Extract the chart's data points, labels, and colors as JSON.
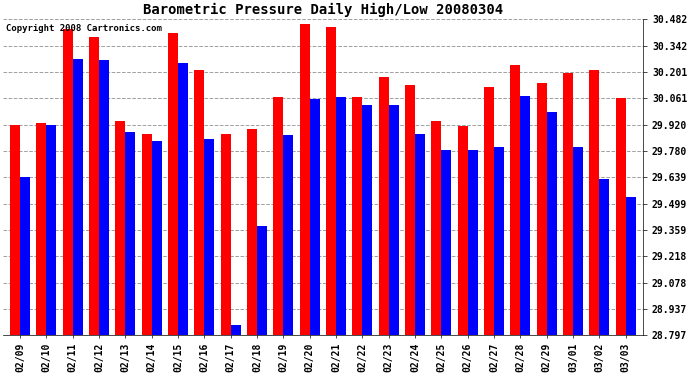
{
  "title": "Barometric Pressure Daily High/Low 20080304",
  "copyright": "Copyright 2008 Cartronics.com",
  "dates": [
    "02/09",
    "02/10",
    "02/11",
    "02/12",
    "02/13",
    "02/14",
    "02/15",
    "02/16",
    "02/17",
    "02/18",
    "02/19",
    "02/20",
    "02/21",
    "02/22",
    "02/23",
    "02/24",
    "02/25",
    "02/26",
    "02/27",
    "02/28",
    "02/29",
    "03/01",
    "03/02",
    "03/03"
  ],
  "highs": [
    29.92,
    29.93,
    30.43,
    30.39,
    29.94,
    29.87,
    30.41,
    30.21,
    29.87,
    29.9,
    30.07,
    30.46,
    30.44,
    30.07,
    30.175,
    30.135,
    29.94,
    29.915,
    30.12,
    30.24,
    30.145,
    30.195,
    30.21,
    30.065
  ],
  "lows": [
    29.64,
    29.92,
    30.27,
    30.265,
    29.88,
    29.835,
    30.25,
    29.845,
    28.85,
    29.38,
    29.865,
    30.055,
    30.07,
    30.025,
    30.025,
    29.87,
    29.785,
    29.785,
    29.8,
    30.075,
    29.99,
    29.8,
    29.63,
    29.535
  ],
  "high_color": "#ff0000",
  "low_color": "#0000ff",
  "bg_color": "#ffffff",
  "grid_color": "#888888",
  "yticks": [
    28.797,
    28.937,
    29.078,
    29.218,
    29.359,
    29.499,
    29.639,
    29.78,
    29.92,
    30.061,
    30.201,
    30.342,
    30.482
  ],
  "ymin": 28.797,
  "ymax": 30.482,
  "title_fontsize": 10,
  "tick_fontsize": 7,
  "copyright_fontsize": 6.5,
  "bar_width": 0.38,
  "figwidth": 6.9,
  "figheight": 3.75
}
